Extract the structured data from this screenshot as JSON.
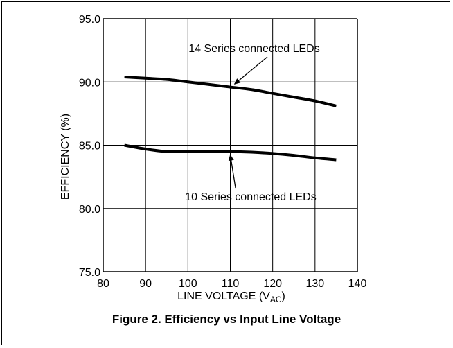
{
  "figure": {
    "caption": "Figure 2. Efficiency vs Input Line Voltage"
  },
  "chart_data": {
    "type": "line",
    "xlabel": "LINE VOLTAGE (V",
    "xlabel_sub": "AC",
    "xlabel_end": ")",
    "ylabel": "EFFICIENCY (%)",
    "xlim": [
      80,
      140
    ],
    "ylim": [
      75.0,
      95.0
    ],
    "x_ticks": [
      80,
      90,
      100,
      110,
      120,
      130,
      140
    ],
    "y_ticks": [
      75.0,
      80.0,
      85.0,
      90.0,
      95.0
    ],
    "x_tick_labels": [
      "80",
      "90",
      "100",
      "110",
      "120",
      "130",
      "140"
    ],
    "y_tick_labels": [
      "75.0",
      "80.0",
      "85.0",
      "90.0",
      "95.0"
    ],
    "grid": true,
    "series": [
      {
        "name": "14 Series connected LEDs",
        "x": [
          85,
          90,
          95,
          100,
          105,
          110,
          115,
          120,
          125,
          130,
          135
        ],
        "y": [
          90.4,
          90.3,
          90.2,
          90.0,
          89.8,
          89.6,
          89.4,
          89.1,
          88.8,
          88.5,
          88.1
        ]
      },
      {
        "name": "10 Series connected LEDs",
        "x": [
          85,
          90,
          95,
          100,
          105,
          110,
          115,
          120,
          125,
          130,
          135
        ],
        "y": [
          85.0,
          84.7,
          84.5,
          84.5,
          84.5,
          84.5,
          84.45,
          84.35,
          84.2,
          84.0,
          83.85
        ]
      }
    ],
    "annotations": [
      {
        "text": "14 Series connected LEDs",
        "series": 0,
        "arrow_to_x": 111
      },
      {
        "text": "10 Series connected LEDs",
        "series": 1,
        "arrow_to_x": 110
      }
    ]
  }
}
